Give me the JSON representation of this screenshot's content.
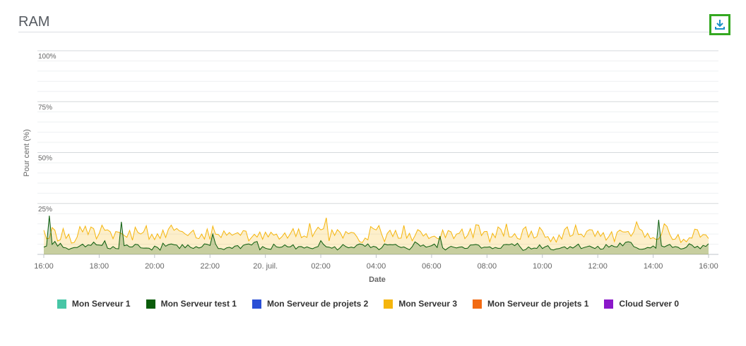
{
  "panel": {
    "title": "RAM",
    "download_icon": "download-icon"
  },
  "chart_data": {
    "type": "area",
    "ylabel": "Pour cent (%)",
    "xlabel": "Date",
    "ylim": [
      0,
      100
    ],
    "yticks": [
      "100%",
      "75%",
      "50%",
      "25%"
    ],
    "ytick_values": [
      100,
      75,
      50,
      25
    ],
    "xticks": [
      "16:00",
      "18:00",
      "20:00",
      "22:00",
      "20. juil.",
      "02:00",
      "04:00",
      "06:00",
      "08:00",
      "10:00",
      "12:00",
      "14:00",
      "16:00"
    ],
    "xtick_hours": [
      0,
      2,
      4,
      6,
      8,
      10,
      12,
      14,
      16,
      18,
      20,
      22,
      24
    ],
    "x_hours": [
      0,
      0.5,
      1,
      1.5,
      2,
      2.5,
      3,
      3.5,
      4,
      4.5,
      5,
      5.5,
      6,
      6.5,
      7,
      7.5,
      8,
      8.5,
      9,
      9.5,
      10,
      10.5,
      11,
      11.5,
      12,
      12.5,
      13,
      13.5,
      14,
      14.5,
      15,
      15.5,
      16,
      16.5,
      17,
      17.5,
      18,
      18.5,
      19,
      19.5,
      20,
      20.5,
      21,
      21.5,
      22,
      22.5,
      23,
      23.5,
      24
    ],
    "grid": true,
    "legend_position": "bottom-center",
    "series": [
      {
        "name": "Mon Serveur 1",
        "color": "#47c6a6",
        "values": []
      },
      {
        "name": "Mon Serveur test 1",
        "color": "#0a5c0a",
        "values": [
          4,
          5,
          3,
          4,
          5,
          3,
          4,
          4,
          3,
          5,
          4,
          3,
          4,
          3,
          4,
          5,
          3,
          4,
          4,
          3,
          5,
          3,
          4,
          4,
          3,
          4,
          3,
          5,
          4,
          3,
          4,
          4,
          3,
          4,
          5,
          3,
          4,
          3,
          4,
          4,
          3,
          4,
          5,
          3,
          4,
          4,
          3,
          4,
          4
        ],
        "peaks": [
          {
            "x": 0.2,
            "y": 19
          },
          {
            "x": 2.8,
            "y": 16
          },
          {
            "x": 6.1,
            "y": 10
          },
          {
            "x": 14.3,
            "y": 9
          },
          {
            "x": 22.2,
            "y": 17
          }
        ]
      },
      {
        "name": "Mon Serveur de projets 2",
        "color": "#2a4fd6",
        "values": []
      },
      {
        "name": "Mon Serveur 3",
        "color": "#f5b50c",
        "values": [
          9,
          10,
          8,
          12,
          11,
          9,
          10,
          12,
          8,
          11,
          10,
          9,
          11,
          10,
          12,
          9,
          11,
          8,
          10,
          12,
          11,
          9,
          10,
          8,
          12,
          9,
          11,
          10,
          9,
          11,
          10,
          12,
          9,
          10,
          8,
          11,
          10,
          9,
          12,
          10,
          11,
          9,
          10,
          12,
          9,
          11,
          8,
          10,
          12
        ],
        "peaks": [
          {
            "x": 10.2,
            "y": 18
          },
          {
            "x": 16.7,
            "y": 15
          },
          {
            "x": 22.4,
            "y": 15
          }
        ]
      },
      {
        "name": "Mon Serveur de projets 1",
        "color": "#f26a12",
        "values": []
      },
      {
        "name": "Cloud Server 0",
        "color": "#8a17c9",
        "values": []
      }
    ]
  }
}
